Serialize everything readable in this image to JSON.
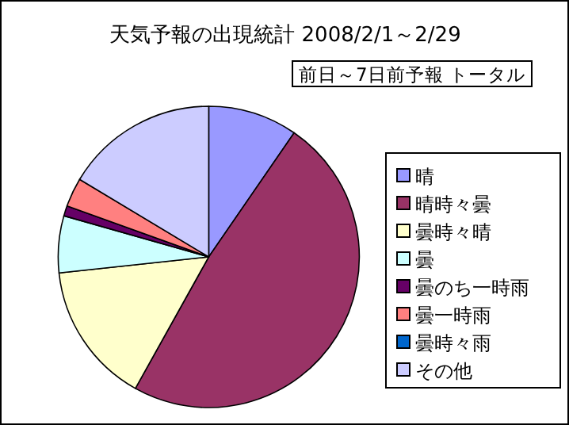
{
  "chart_data": {
    "type": "pie",
    "title": "天気予報の出現統計  2008/2/1～2/29",
    "subtitle": "前日～7日前予報 トータル",
    "categories": [
      "晴",
      "晴時々曇",
      "曇時々晴",
      "曇",
      "曇のち一時雨",
      "曇一時雨",
      "曇時々雨",
      "その他"
    ],
    "values": [
      9.6,
      48.5,
      15.2,
      6.1,
      1.1,
      3.1,
      0,
      16.4
    ],
    "colors": [
      "#9999ff",
      "#993366",
      "#ffffcc",
      "#ccffff",
      "#660066",
      "#ff8080",
      "#0066cc",
      "#ccccff"
    ],
    "legend": "right"
  }
}
